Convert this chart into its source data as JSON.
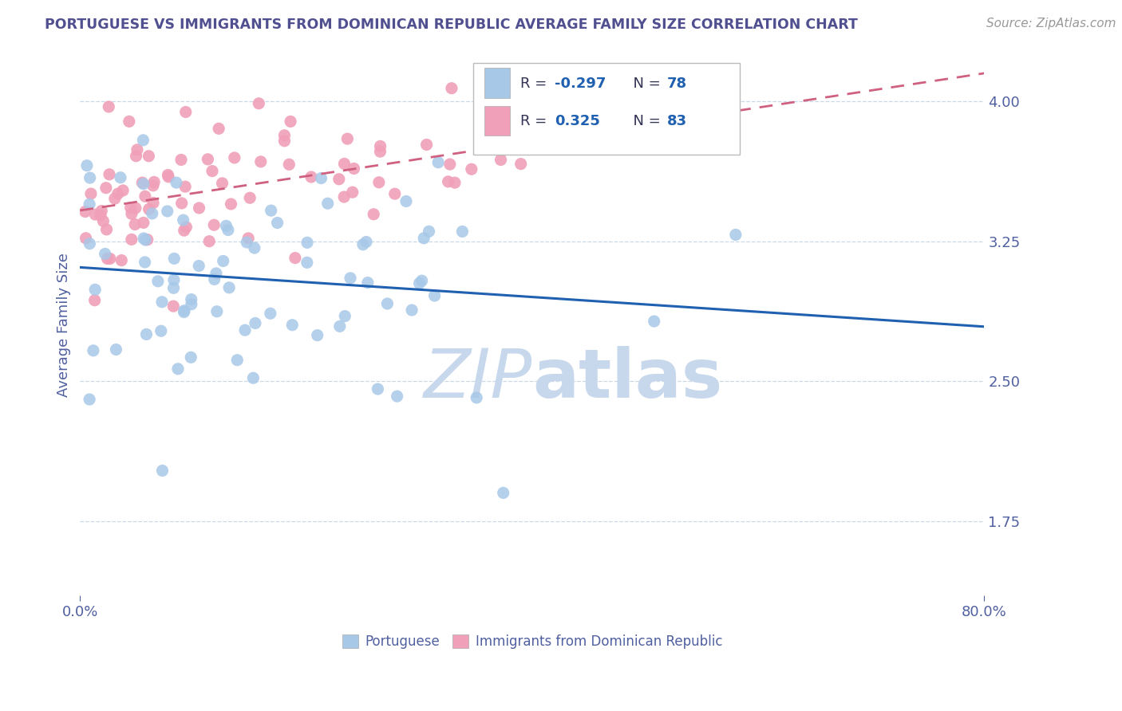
{
  "title": "PORTUGUESE VS IMMIGRANTS FROM DOMINICAN REPUBLIC AVERAGE FAMILY SIZE CORRELATION CHART",
  "source": "Source: ZipAtlas.com",
  "ylabel": "Average Family Size",
  "yticks_right": [
    1.75,
    2.5,
    3.25,
    4.0
  ],
  "xlim": [
    0.0,
    0.8
  ],
  "ylim": [
    1.35,
    4.25
  ],
  "R_portuguese": -0.297,
  "N_portuguese": 78,
  "R_dominican": 0.325,
  "N_dominican": 83,
  "blue_scatter_color": "#A8C8E8",
  "pink_scatter_color": "#F0A0B8",
  "blue_line_color": "#2060B0",
  "pink_line_color": "#D06080",
  "legend_R_neg_color": "#2060B0",
  "legend_R_pos_color": "#2060B0",
  "legend_N_color": "#2060B0",
  "title_color": "#505090",
  "source_color": "#999999",
  "axis_label_color": "#5060A0",
  "tick_color": "#5060A0",
  "grid_color": "#C8D8E8",
  "watermark_color": "#C8D8EC",
  "seed_portuguese": 7,
  "seed_dominican": 99
}
